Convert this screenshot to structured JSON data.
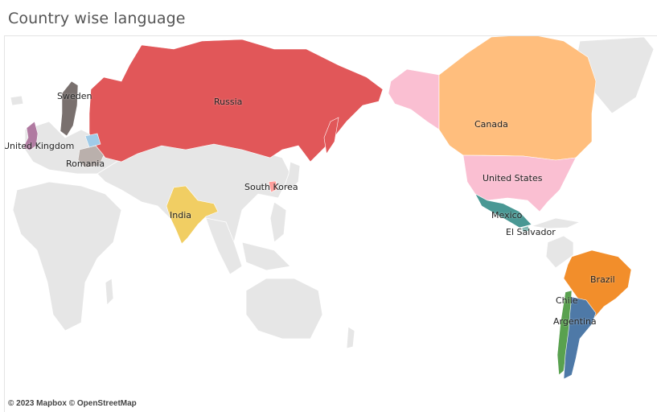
{
  "sheet": {
    "title": "Country wise language"
  },
  "map": {
    "attribution": "© 2023 Mapbox © OpenStreetMap",
    "background_land_color": "#e6e6e6",
    "ocean_color": "#ffffff",
    "countries": [
      {
        "name": "Russia",
        "label": "Russia",
        "color": "#e15759"
      },
      {
        "name": "Sweden",
        "label": "Sweden",
        "color": "#79706e"
      },
      {
        "name": "United Kingdom",
        "label": "United Kingdom",
        "color": "#b07aa1"
      },
      {
        "name": "Romania",
        "label": "Romania",
        "color": "#bab0ac"
      },
      {
        "name": "Belarus",
        "label": "",
        "color": "#a0cbe8"
      },
      {
        "name": "India",
        "label": "India",
        "color": "#f1ce63"
      },
      {
        "name": "South Korea",
        "label": "South Korea",
        "color": "#ff9d9a"
      },
      {
        "name": "Canada",
        "label": "Canada",
        "color": "#ffbe7d"
      },
      {
        "name": "United States",
        "label": "United States",
        "color": "#fabfd2"
      },
      {
        "name": "Mexico",
        "label": "Mexico",
        "color": "#499894"
      },
      {
        "name": "El Salvador",
        "label": "El Salvador",
        "color": "#86bcb6"
      },
      {
        "name": "Brazil",
        "label": "Brazil",
        "color": "#f28e2b"
      },
      {
        "name": "Chile",
        "label": "Chile",
        "color": "#59a14f"
      },
      {
        "name": "Argentina",
        "label": "Argentina",
        "color": "#4e79a7"
      }
    ]
  }
}
